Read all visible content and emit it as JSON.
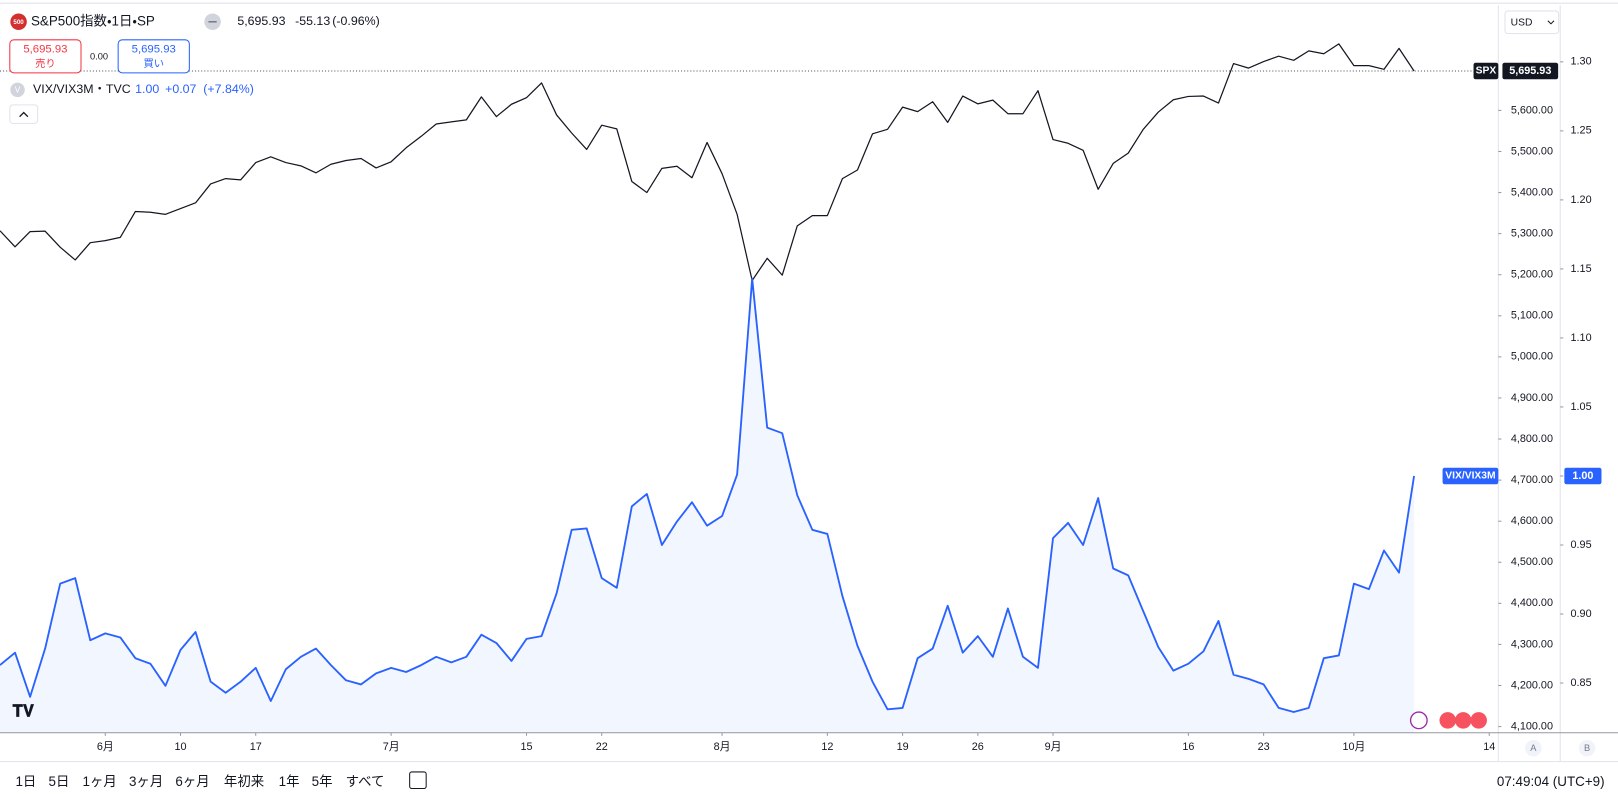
{
  "header": {
    "icon": "500",
    "symbol": "S&P500指数・1日・SP",
    "last": "5,695.93",
    "change": "-55.13",
    "change_pct": "(-0.96%)",
    "sell": "5,695.93",
    "sell_label": "売り",
    "spread": "0.00",
    "buy": "5,695.93",
    "buy_label": "買い"
  },
  "indicator_legend": {
    "icon": "V",
    "symbol": "VIX/VIX3M・TVC",
    "last": "1.00",
    "change": "+0.07",
    "change_pct": "(+7.84%)"
  },
  "currency": "USD",
  "axis_buttons": [
    "A",
    "B"
  ],
  "toolbar": {
    "ranges": [
      "1日",
      "5日",
      "1ヶ月",
      "3ヶ月",
      "6ヶ月",
      "年初来",
      "1年",
      "5年",
      "すべて"
    ],
    "time": "07:49:04 (UTC+9)"
  },
  "chart_data": {
    "type": "line",
    "grid": false,
    "xlim": [
      0,
      99.6
    ],
    "xticks": [
      {
        "value": 7,
        "label": "6月"
      },
      {
        "value": 12,
        "label": "10"
      },
      {
        "value": 17,
        "label": "17"
      },
      {
        "value": 26,
        "label": "7月"
      },
      {
        "value": 35,
        "label": "15"
      },
      {
        "value": 40,
        "label": "22"
      },
      {
        "value": 48,
        "label": "8月"
      },
      {
        "value": 55,
        "label": "12"
      },
      {
        "value": 60,
        "label": "19"
      },
      {
        "value": 65,
        "label": "26"
      },
      {
        "value": 70,
        "label": "9月"
      },
      {
        "value": 79,
        "label": "16"
      },
      {
        "value": 84,
        "label": "23"
      },
      {
        "value": 90,
        "label": "10月"
      },
      {
        "value": 99,
        "label": "14"
      }
    ],
    "ylim": [
      4085,
      5856
    ],
    "yticks": [
      {
        "value": 4100,
        "label": "4,100.00"
      },
      {
        "value": 4200,
        "label": "4,200.00"
      },
      {
        "value": 4300,
        "label": "4,300.00"
      },
      {
        "value": 4400,
        "label": "4,400.00"
      },
      {
        "value": 4500,
        "label": "4,500.00"
      },
      {
        "value": 4600,
        "label": "4,600.00"
      },
      {
        "value": 4700,
        "label": "4,700.00"
      },
      {
        "value": 4800,
        "label": "4,800.00"
      },
      {
        "value": 4900,
        "label": "4,900.00"
      },
      {
        "value": 5000,
        "label": "5,000.00"
      },
      {
        "value": 5100,
        "label": "5,100.00"
      },
      {
        "value": 5200,
        "label": "5,200.00"
      },
      {
        "value": 5300,
        "label": "5,300.00"
      },
      {
        "value": 5400,
        "label": "5,400.00"
      },
      {
        "value": 5500,
        "label": "5,500.00"
      },
      {
        "value": 5600,
        "label": "5,600.00"
      }
    ],
    "y2lim": [
      0.814,
      1.341
    ],
    "y2ticks": [
      0.85,
      {
        "value": 0.9,
        "label": "0.90"
      },
      0.95,
      {
        "value": 1.0,
        "label": "1.00"
      },
      1.05,
      {
        "value": 1.1,
        "label": "1.10"
      },
      1.15,
      {
        "value": 1.2,
        "label": "1.20"
      },
      1.25,
      {
        "value": 1.3,
        "label": "1.30"
      }
    ],
    "series": [
      {
        "name": "SPX",
        "color": "#131722",
        "last_value_label": "5,695.93",
        "values": [
          5307,
          5268,
          5305,
          5306,
          5267,
          5236,
          5278,
          5283,
          5291,
          5354,
          5352,
          5347,
          5361,
          5375,
          5421,
          5434,
          5431,
          5473,
          5487,
          5473,
          5465,
          5448,
          5469,
          5478,
          5483,
          5460,
          5475,
          5509,
          5537,
          5567,
          5572,
          5577,
          5633,
          5585,
          5615,
          5631,
          5667,
          5589,
          5545,
          5505,
          5564,
          5555,
          5427,
          5400,
          5459,
          5464,
          5436,
          5522,
          5446,
          5347,
          5186,
          5240,
          5199,
          5319,
          5344,
          5344,
          5434,
          5455,
          5543,
          5554,
          5608,
          5597,
          5621,
          5571,
          5635,
          5616,
          5625,
          5592,
          5592,
          5648,
          5529,
          5520,
          5503,
          5408,
          5471,
          5496,
          5554,
          5596,
          5626,
          5634,
          5635,
          5618,
          5714,
          5703,
          5719,
          5732,
          5722,
          5745,
          5738,
          5762,
          5709,
          5709,
          5700,
          5751,
          5695.93
        ]
      },
      {
        "name": "VIX/VIX3M",
        "color": "#2962ff",
        "axis": "y2",
        "area": true,
        "last_value_label": "1.00",
        "values": [
          0.863,
          0.872,
          0.84,
          0.875,
          0.922,
          0.926,
          0.881,
          0.886,
          0.883,
          0.868,
          0.864,
          0.848,
          0.874,
          0.887,
          0.851,
          0.843,
          0.851,
          0.861,
          0.837,
          0.86,
          0.869,
          0.875,
          0.863,
          0.852,
          0.849,
          0.857,
          0.861,
          0.858,
          0.863,
          0.869,
          0.865,
          0.869,
          0.885,
          0.879,
          0.866,
          0.882,
          0.884,
          0.915,
          0.961,
          0.962,
          0.926,
          0.919,
          0.978,
          0.987,
          0.95,
          0.967,
          0.981,
          0.964,
          0.971,
          1.001,
          1.143,
          1.035,
          1.031,
          0.986,
          0.961,
          0.958,
          0.913,
          0.877,
          0.851,
          0.831,
          0.832,
          0.868,
          0.875,
          0.906,
          0.872,
          0.884,
          0.869,
          0.904,
          0.869,
          0.861,
          0.955,
          0.966,
          0.95,
          0.984,
          0.933,
          0.928,
          0.902,
          0.876,
          0.859,
          0.864,
          0.873,
          0.895,
          0.856,
          0.853,
          0.849,
          0.832,
          0.829,
          0.832,
          0.868,
          0.87,
          0.922,
          0.918,
          0.946,
          0.93,
          1.0
        ]
      }
    ]
  }
}
